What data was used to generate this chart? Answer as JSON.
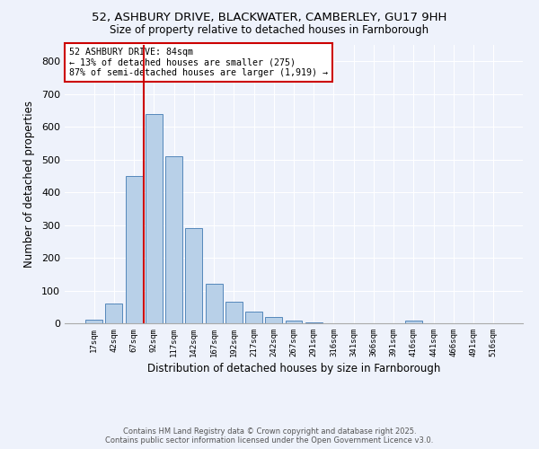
{
  "title1": "52, ASHBURY DRIVE, BLACKWATER, CAMBERLEY, GU17 9HH",
  "title2": "Size of property relative to detached houses in Farnborough",
  "xlabel": "Distribution of detached houses by size in Farnborough",
  "ylabel": "Number of detached properties",
  "bar_labels": [
    "17sqm",
    "42sqm",
    "67sqm",
    "92sqm",
    "117sqm",
    "142sqm",
    "167sqm",
    "192sqm",
    "217sqm",
    "242sqm",
    "267sqm",
    "291sqm",
    "316sqm",
    "341sqm",
    "366sqm",
    "391sqm",
    "416sqm",
    "441sqm",
    "466sqm",
    "491sqm",
    "516sqm"
  ],
  "bar_values": [
    10,
    60,
    450,
    640,
    510,
    290,
    120,
    65,
    35,
    20,
    8,
    3,
    0,
    0,
    0,
    0,
    8,
    0,
    0,
    0,
    0
  ],
  "bar_color": "#b8d0e8",
  "bar_edge_color": "#5588bb",
  "vline_x_index": 2.5,
  "vline_color": "#cc0000",
  "annotation_title": "52 ASHBURY DRIVE: 84sqm",
  "annotation_line2": "← 13% of detached houses are smaller (275)",
  "annotation_line3": "87% of semi-detached houses are larger (1,919) →",
  "annotation_box_edge_color": "#cc0000",
  "ylim": [
    0,
    850
  ],
  "yticks": [
    0,
    100,
    200,
    300,
    400,
    500,
    600,
    700,
    800
  ],
  "footnote1": "Contains HM Land Registry data © Crown copyright and database right 2025.",
  "footnote2": "Contains public sector information licensed under the Open Government Licence v3.0.",
  "bg_color": "#eef2fb",
  "grid_color": "#ffffff",
  "title1_fontsize": 9.5,
  "title2_fontsize": 8.5
}
